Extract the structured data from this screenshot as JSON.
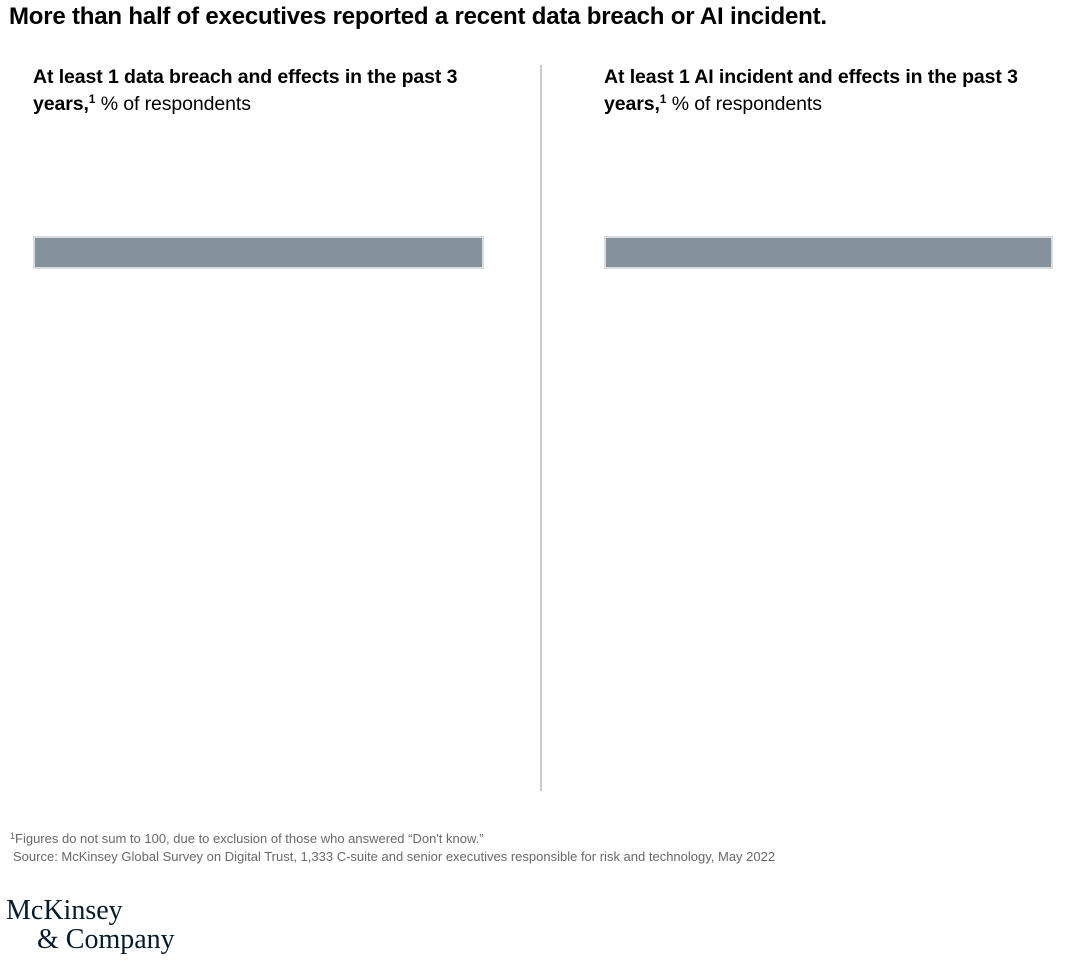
{
  "page": {
    "title": "More than half of executives reported a recent data breach or AI incident.",
    "background_color": "#ffffff",
    "divider_color": "#cacaca"
  },
  "panels": [
    {
      "id": "data-breach",
      "heading_bold": "At least 1 data breach and effects in the past 3 years,",
      "footnote_marker": "1",
      "heading_regular": " % of respondents",
      "bar": {
        "color": "#85929B",
        "width_pct": 100,
        "value_label": ""
      }
    },
    {
      "id": "ai-incident",
      "heading_bold": "At least 1 AI incident and effects in the past 3 years,",
      "footnote_marker": "1",
      "heading_regular": " % of respondents",
      "bar": {
        "color": "#85929B",
        "width_pct": 100,
        "value_label": ""
      }
    }
  ],
  "footnotes": {
    "note_marker": "1",
    "note": "Figures do not sum to 100, due to exclusion of those who answered “Don't know.”",
    "source": "Source: McKinsey Global Survey on Digital Trust, 1,333 C-suite and senior executives responsible for risk and technology, May 2022"
  },
  "logo": {
    "line1": "McKinsey",
    "line2": "& Company",
    "color": "#051C2C"
  },
  "chart_data": [
    {
      "type": "bar",
      "orientation": "horizontal",
      "title": "At least 1 data breach and effects in the past 3 years,¹",
      "unit_label": "% of respondents",
      "categories": [
        ""
      ],
      "bar_length_pct_of_panel": [
        100
      ],
      "values_labeled": false,
      "bar_color": "#85929B",
      "grid": false,
      "axes_visible": false,
      "note": "Single unlabeled horizontal bar drawn across full panel width; no axis ticks or data labels are rendered in this frame"
    },
    {
      "type": "bar",
      "orientation": "horizontal",
      "title": "At least 1 AI incident and effects in the past 3 years,¹",
      "unit_label": "% of respondents",
      "categories": [
        ""
      ],
      "bar_length_pct_of_panel": [
        100
      ],
      "values_labeled": false,
      "bar_color": "#85929B",
      "grid": false,
      "axes_visible": false,
      "note": "Single unlabeled horizontal bar drawn across full panel width; no axis ticks or data labels are rendered in this frame"
    }
  ]
}
